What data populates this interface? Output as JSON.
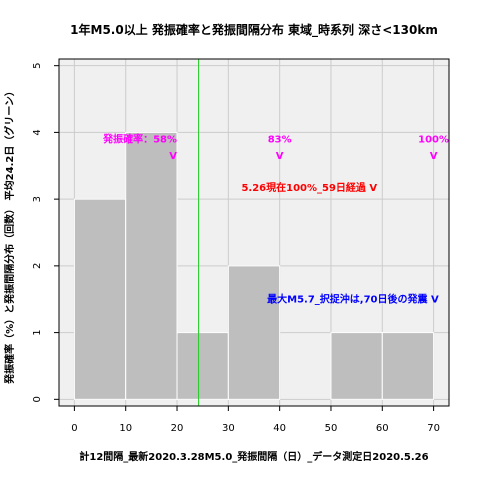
{
  "chart_data": {
    "type": "bar",
    "title": "1年M5.0以上 発振確率と発振間隔分布 東域_時系列 深さ<130km",
    "xlabel": "計12間隔_最新2020.3.28M5.0_発振間隔（日）_データ測定日2020.5.26",
    "ylabel": "発振確率（%）と発振間隔分布（回数） 平均24.2日（グリーン）",
    "xlim": [
      -3,
      73
    ],
    "ylim": [
      -0.1,
      5.1
    ],
    "xticks": [
      0,
      10,
      20,
      30,
      40,
      50,
      60,
      70
    ],
    "yticks": [
      0,
      1,
      2,
      3,
      4,
      5
    ],
    "bins": [
      {
        "x0": 0,
        "x1": 10,
        "count": 3
      },
      {
        "x0": 10,
        "x1": 20,
        "count": 4
      },
      {
        "x0": 20,
        "x1": 30,
        "count": 1
      },
      {
        "x0": 30,
        "x1": 40,
        "count": 2
      },
      {
        "x0": 40,
        "x1": 50,
        "count": 0
      },
      {
        "x0": 50,
        "x1": 60,
        "count": 1
      },
      {
        "x0": 60,
        "x1": 70,
        "count": 1
      }
    ],
    "mean_line": {
      "x": 24.2,
      "color": "#22cc22"
    },
    "bar_color": "#bebebe",
    "background": "#f0f0f0",
    "grid": true,
    "annotations": [
      {
        "text": "発振確率：58%",
        "x": 20,
        "y": 3.85,
        "color": "#ff00ff",
        "anchor": "end"
      },
      {
        "text": "V",
        "x": 20,
        "y": 3.6,
        "color": "#ff00ff",
        "anchor": "end"
      },
      {
        "text": "83%",
        "x": 40,
        "y": 3.85,
        "color": "#ff00ff",
        "anchor": "middle"
      },
      {
        "text": "V",
        "x": 40,
        "y": 3.6,
        "color": "#ff00ff",
        "anchor": "middle"
      },
      {
        "text": "100%",
        "x": 70,
        "y": 3.85,
        "color": "#ff00ff",
        "anchor": "middle"
      },
      {
        "text": "V",
        "x": 70,
        "y": 3.6,
        "color": "#ff00ff",
        "anchor": "middle"
      },
      {
        "text": "5.26現在100%_59日経過 V",
        "x": 59,
        "y": 3.12,
        "color": "#ff0000",
        "anchor": "end"
      },
      {
        "text": "最大M5.7_択捉沖は,70日後の発震 V",
        "x": 71,
        "y": 1.45,
        "color": "#0000ff",
        "anchor": "end"
      }
    ]
  }
}
